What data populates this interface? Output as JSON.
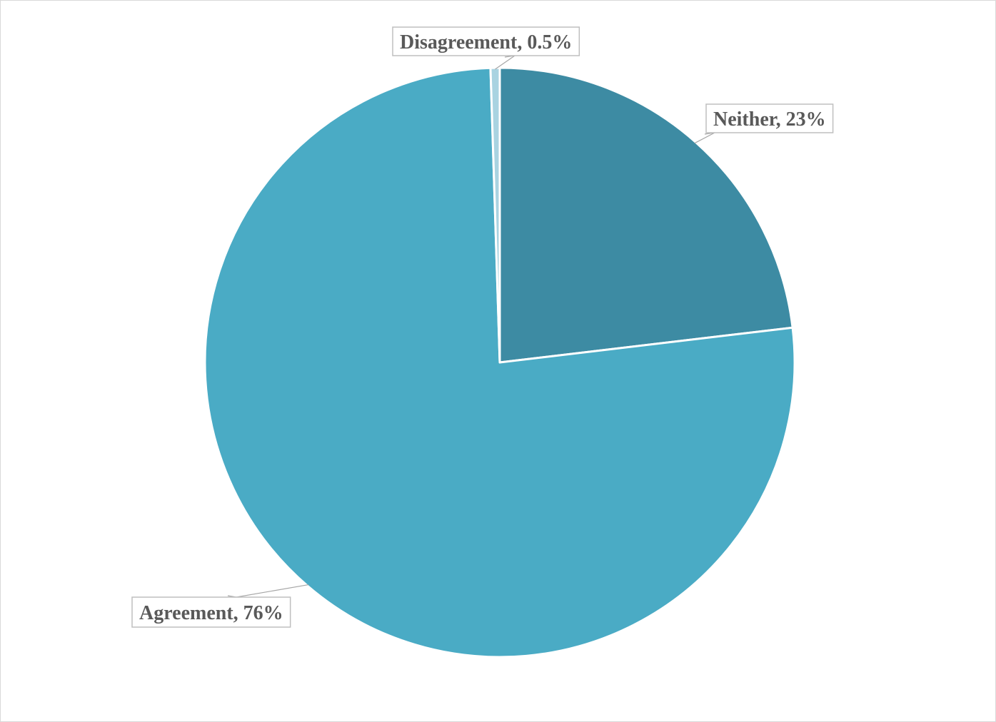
{
  "chart_data": {
    "type": "pie",
    "title": "",
    "start_angle_deg": 0,
    "direction": "clockwise",
    "slices": [
      {
        "label": "Neither",
        "value": 23,
        "value_label": "23%",
        "color": "#3d8ba3"
      },
      {
        "label": "Agreement",
        "value": 76,
        "value_label": "76%",
        "color": "#4aabc5"
      },
      {
        "label": "Disagreement",
        "value": 0.5,
        "value_label": "0.5%",
        "color": "#a9d3e1"
      }
    ],
    "slice_border_color": "#ffffff",
    "data_labels": "outside-with-leader-lines",
    "legend": "none"
  }
}
